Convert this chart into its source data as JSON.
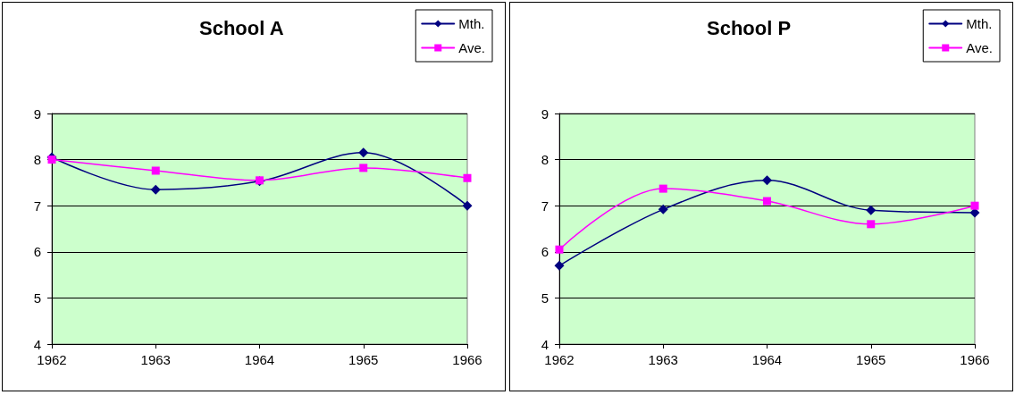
{
  "chart_data": [
    {
      "type": "line",
      "title": "School A",
      "categories": [
        "1962",
        "1963",
        "1964",
        "1965",
        "1966"
      ],
      "series": [
        {
          "name": "Mth.",
          "color": "#000080",
          "marker": "diamond",
          "values": [
            8.05,
            7.35,
            7.53,
            8.15,
            7.0
          ]
        },
        {
          "name": "Ave.",
          "color": "#ff00ff",
          "marker": "square",
          "values": [
            8.0,
            7.76,
            7.55,
            7.82,
            7.6
          ]
        }
      ],
      "ylim": [
        4,
        9
      ],
      "yticks": [
        4,
        5,
        6,
        7,
        8,
        9
      ],
      "grid": "y",
      "legend": "top right",
      "line_style": "solid"
    },
    {
      "type": "line",
      "title": "School P",
      "categories": [
        "1962",
        "1963",
        "1964",
        "1965",
        "1966"
      ],
      "series": [
        {
          "name": "Mth.",
          "color": "#000080",
          "marker": "diamond",
          "values": [
            5.7,
            6.92,
            7.55,
            6.9,
            6.85
          ]
        },
        {
          "name": "Ave.",
          "color": "#ff00ff",
          "marker": "square",
          "values": [
            6.05,
            7.37,
            7.1,
            6.6,
            7.0
          ]
        }
      ],
      "ylim": [
        4,
        9
      ],
      "yticks": [
        4,
        5,
        6,
        7,
        8,
        9
      ],
      "grid": "y",
      "legend": "top right",
      "line_style": "solid"
    }
  ]
}
